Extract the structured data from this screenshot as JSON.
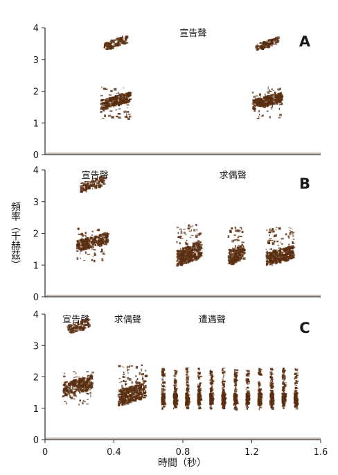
{
  "chart_data": {
    "type": "spectrogram",
    "xlabel": "時間（秒）",
    "ylabel": "頻率（千赫茲）",
    "xlim": [
      0,
      1.6
    ],
    "ylim": [
      0,
      4
    ],
    "x_ticks": [
      "0",
      "0.4",
      "0.8",
      "1.2",
      "1.6"
    ],
    "y_ticks": [
      "0",
      "1",
      "2",
      "3",
      "4"
    ],
    "colors": {
      "ink": "#5a2e10",
      "axis": "#2a2a2a"
    },
    "panels": [
      {
        "letter": "A",
        "calls": [
          {
            "label": "宣告聲",
            "label_x": 0.86,
            "type": "announcement",
            "t_start": 0.32,
            "t_end": 0.49,
            "f_low": 1.45,
            "f_high": 1.75,
            "f_harmonic_low": 3.3,
            "f_harmonic_high": 3.55
          },
          {
            "label": "",
            "type": "announcement",
            "t_start": 1.2,
            "t_end": 1.37,
            "f_low": 1.45,
            "f_high": 1.75,
            "f_harmonic_low": 3.3,
            "f_harmonic_high": 3.5
          }
        ]
      },
      {
        "letter": "B",
        "calls": [
          {
            "label": "宣告聲",
            "label_x": 0.29,
            "type": "announcement",
            "t_start": 0.18,
            "t_end": 0.36,
            "f_low": 1.45,
            "f_high": 1.8,
            "f_harmonic_low": 3.3,
            "f_harmonic_high": 3.6
          },
          {
            "label": "求偶聲",
            "label_x": 1.09,
            "type": "courtship",
            "segments": [
              {
                "t_start": 0.76,
                "t_end": 0.9,
                "f_low": 1.0,
                "f_high": 1.5
              },
              {
                "t_start": 1.06,
                "t_end": 1.15,
                "f_low": 1.0,
                "f_high": 1.45
              },
              {
                "t_start": 1.28,
                "t_end": 1.44,
                "f_low": 1.0,
                "f_high": 1.4
              }
            ]
          }
        ]
      },
      {
        "letter": "C",
        "calls": [
          {
            "label": "宣告聲",
            "label_x": 0.18,
            "type": "announcement",
            "t_start": 0.1,
            "t_end": 0.27,
            "f_low": 1.4,
            "f_high": 1.85,
            "f_harmonic_low": 3.35,
            "f_harmonic_high": 3.65
          },
          {
            "label": "求偶聲",
            "label_x": 0.48,
            "type": "courtship",
            "t_start": 0.42,
            "t_end": 0.58,
            "f_low": 1.1,
            "f_high": 1.6
          },
          {
            "label": "遭遇聲",
            "label_x": 0.97,
            "type": "encounter",
            "pulse_times": [
              0.68,
              0.75,
              0.82,
              0.89,
              0.96,
              1.03,
              1.1,
              1.17,
              1.24,
              1.31,
              1.38,
              1.45
            ],
            "f_low": 1.0,
            "f_high": 2.3
          }
        ]
      }
    ]
  }
}
